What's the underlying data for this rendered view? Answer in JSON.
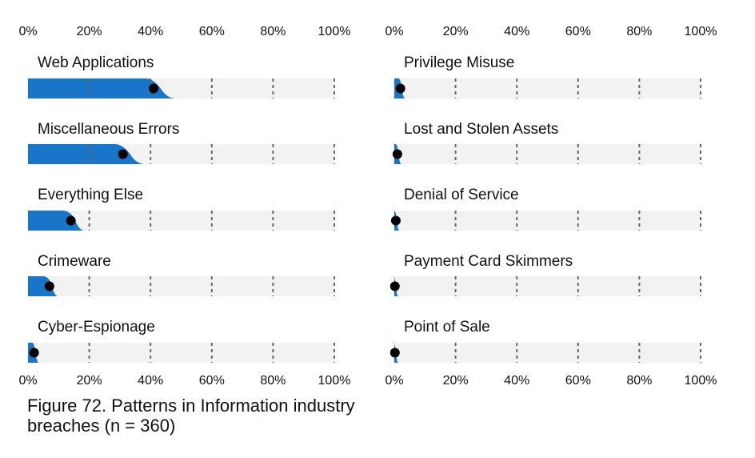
{
  "caption": "Figure 72. Patterns in Information industry breaches (n = 360)",
  "colors": {
    "fill": "#1875c8",
    "track": "#f2f2f2",
    "dot": "#000000",
    "gridline": "#666666"
  },
  "chart_data": [
    {
      "type": "bar",
      "x_ticks": [
        "0%",
        "20%",
        "40%",
        "60%",
        "80%",
        "100%"
      ],
      "xlim": [
        0,
        100
      ],
      "categories": [
        "Web Applications",
        "Miscellaneous Errors",
        "Everything Else",
        "Crimeware",
        "Cyber-Espionage"
      ],
      "values": [
        41,
        31,
        14,
        7,
        2
      ],
      "grid": true
    },
    {
      "type": "bar",
      "x_ticks": [
        "0%",
        "20%",
        "40%",
        "60%",
        "80%",
        "100%"
      ],
      "xlim": [
        0,
        100
      ],
      "categories": [
        "Privilege Misuse",
        "Lost and Stolen Assets",
        "Denial of Service",
        "Payment Card Skimmers",
        "Point of Sale"
      ],
      "values": [
        2,
        1,
        0.5,
        0.2,
        0.2
      ],
      "grid": true
    }
  ]
}
